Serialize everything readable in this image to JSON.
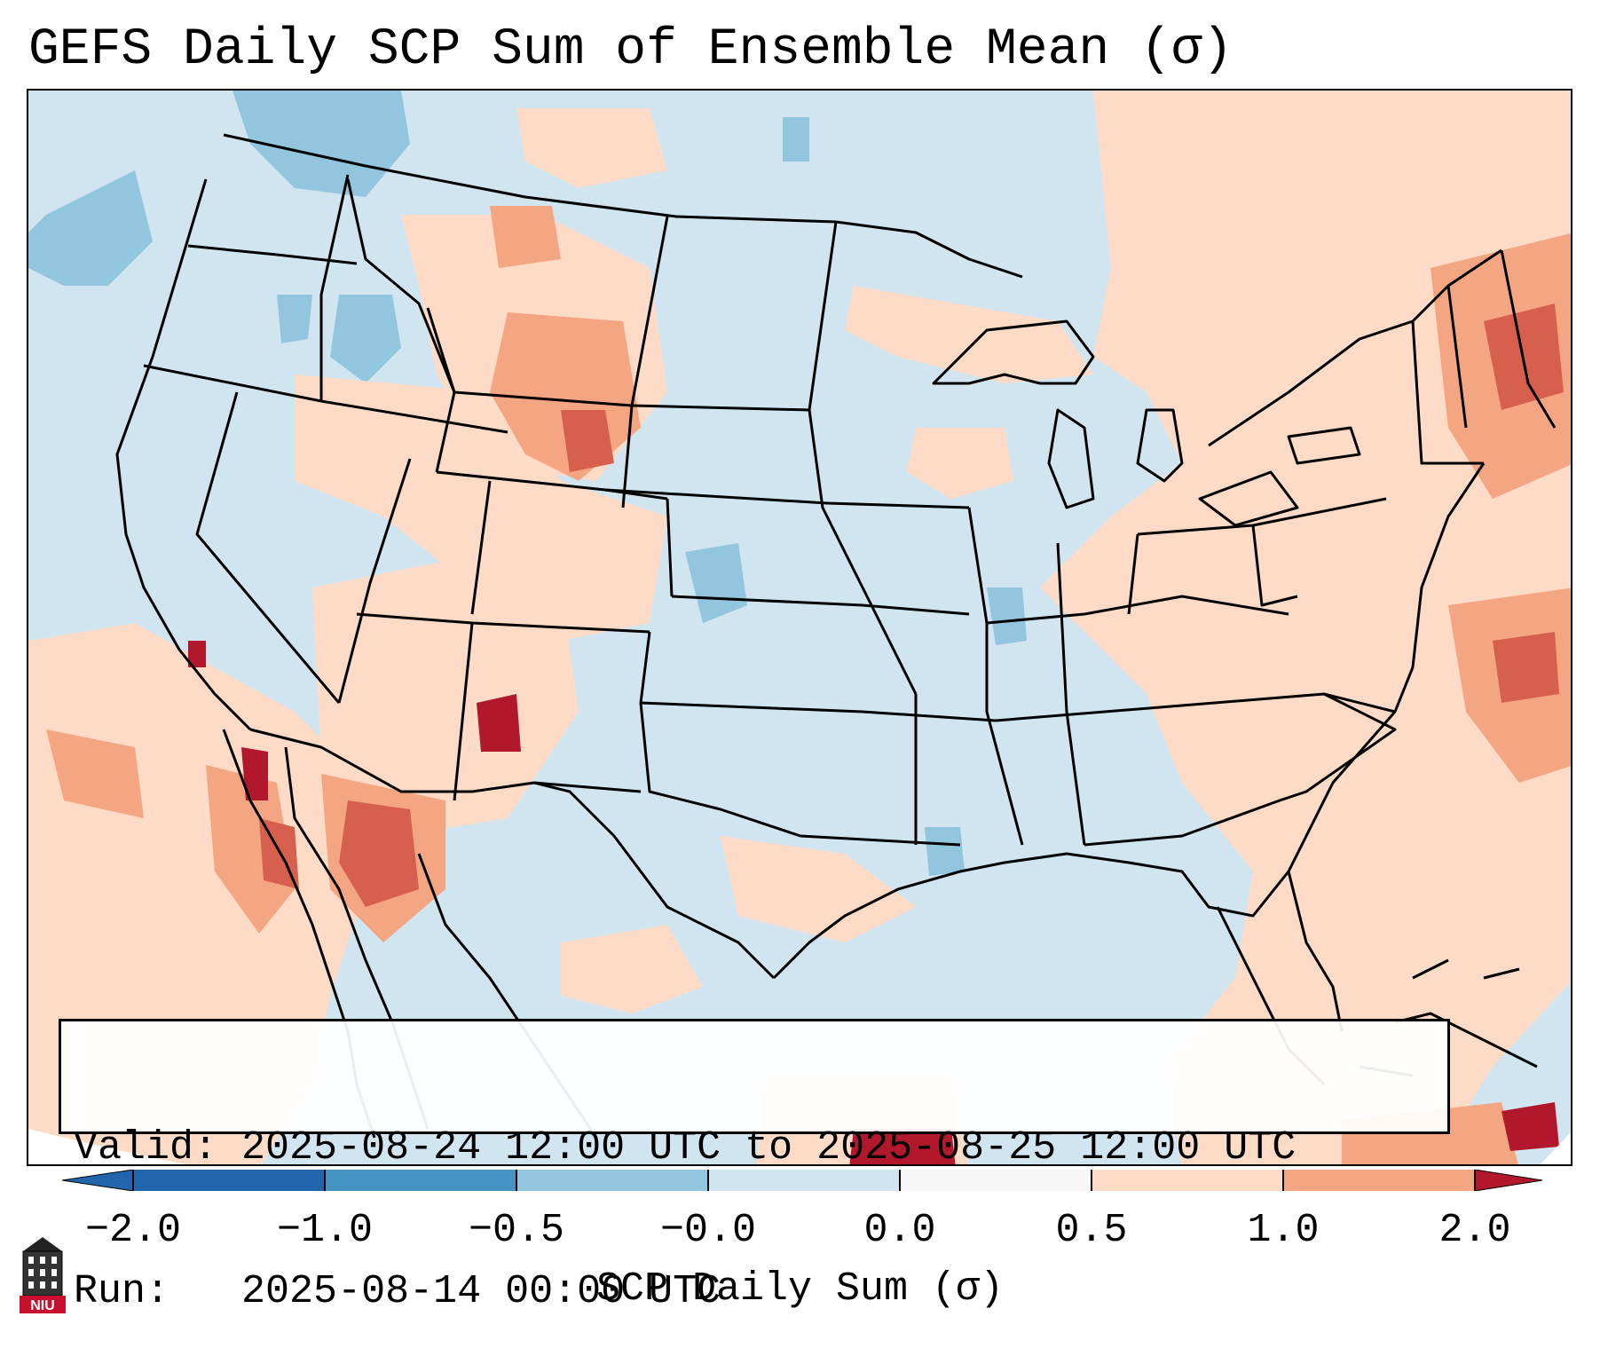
{
  "title": "GEFS Daily SCP Sum of Ensemble Mean (σ)",
  "info": {
    "valid_label": "Valid:",
    "valid_value": "2025-08-24 12:00 UTC to 2025-08-25 12:00 UTC",
    "run_label": "Run:",
    "run_value": "2025-08-14 00:00 UTC"
  },
  "colorbar": {
    "label": "SCP Daily Sum (σ)",
    "ticks": [
      "−2.0",
      "−1.0",
      "−0.5",
      "−0.0",
      "0.0",
      "0.5",
      "1.0",
      "2.0"
    ],
    "colors": [
      "#2166ac",
      "#4393c3",
      "#92c5de",
      "#d1e5f0",
      "#f7f7f7",
      "#fddbc7",
      "#f4a582",
      "#d6604d",
      "#b2182b"
    ],
    "extend": "both"
  },
  "logo": {
    "text": "NIU",
    "icon": "niu-tower-icon"
  },
  "map": {
    "region": "Contiguous United States",
    "background_color": "#d1e5f0",
    "positive_color": "#fddbc7",
    "strong_positive_color": "#d6604d",
    "max_color": "#b2182b",
    "negative_color": "#92c5de"
  }
}
